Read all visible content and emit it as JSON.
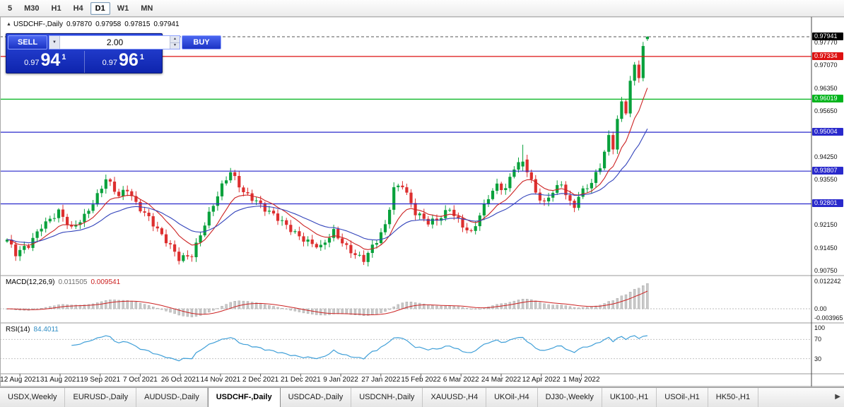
{
  "toolbar": {
    "timeframes": [
      "5",
      "M30",
      "H1",
      "H4",
      "D1",
      "W1",
      "MN"
    ],
    "active": "D1"
  },
  "chart": {
    "collapse_icon": "▲",
    "title": "USDCHF-,Daily",
    "open": "0.97870",
    "high": "0.97958",
    "low": "0.97815",
    "close": "0.97941"
  },
  "trade_panel": {
    "sell_label": "SELL",
    "buy_label": "BUY",
    "lot_size": "2.00",
    "dropdown_icon": "▼",
    "spin_up_icon": "▲",
    "spin_down_icon": "▼",
    "sell_price_prefix": "0.97",
    "sell_price_big": "94",
    "sell_price_sup": "1",
    "buy_price_prefix": "0.97",
    "buy_price_big": "96",
    "buy_price_sup": "1"
  },
  "price_axis": {
    "ticks": [
      "0.97770",
      "0.97070",
      "0.96350",
      "0.95650",
      "0.94250",
      "0.93550",
      "0.92150",
      "0.91450",
      "0.90750"
    ],
    "markers": [
      {
        "label": "0.97941",
        "color": "#000000"
      },
      {
        "label": "0.97334",
        "color": "#dd1111"
      },
      {
        "label": "0.96019",
        "color": "#00b41c"
      },
      {
        "label": "0.95004",
        "color": "#2929cc"
      },
      {
        "label": "0.93807",
        "color": "#2929cc"
      },
      {
        "label": "0.92801",
        "color": "#2929cc"
      }
    ]
  },
  "macd": {
    "name": "MACD(12,26,9)",
    "value_main": "0.011505",
    "value_signal": "0.009541",
    "axis": [
      "0.012242",
      "0.00",
      "-0.003965"
    ]
  },
  "rsi": {
    "name": "RSI(14)",
    "value": "84.4011",
    "axis": [
      "100",
      "70",
      "30"
    ]
  },
  "date_axis": [
    "12 Aug 2021",
    "31 Aug 2021",
    "19 Sep 2021",
    "7 Oct 2021",
    "26 Oct 2021",
    "14 Nov 2021",
    "2 Dec 2021",
    "21 Dec 2021",
    "9 Jan 2022",
    "27 Jan 2022",
    "15 Feb 2022",
    "6 Mar 2022",
    "24 Mar 2022",
    "12 Apr 2022",
    "1 May 2022"
  ],
  "tabs": {
    "items": [
      "USDX,Weekly",
      "EURUSD-,Daily",
      "AUDUSD-,Daily",
      "USDCHF-,Daily",
      "USDCAD-,Daily",
      "USDCNH-,Daily",
      "XAUUSD-,H4",
      "UKOil-,H4",
      "DJ30-,Weekly",
      "UK100-,H1",
      "USOil-,H1",
      "HK50-,H1"
    ],
    "active": "USDCHF-,Daily",
    "scroll_icon": "▶"
  },
  "chart_data": {
    "type": "candlestick",
    "symbol": "USDCHF-",
    "period": "Daily",
    "current_bar": {
      "open": 0.9787,
      "high": 0.97958,
      "low": 0.97815,
      "close": 0.97941
    },
    "bid": "0.97941",
    "ask": "0.97961",
    "up_color": "#09a13c",
    "down_color": "#dd2f2f",
    "ma_fast_color": "#cc2222",
    "ma_slow_color": "#3344bb",
    "macd_hist_color": "#c9c9c9",
    "macd_signal_color": "#cc2222",
    "rsi_color": "#3f9fd8",
    "rsi_levels": [
      70,
      30
    ],
    "levels": [
      {
        "price": 0.97334,
        "color": "#dd1111"
      },
      {
        "price": 0.96019,
        "color": "#00b41c"
      },
      {
        "price": 0.95004,
        "color": "#2929cc"
      },
      {
        "price": 0.93807,
        "color": "#2929cc"
      },
      {
        "price": 0.92801,
        "color": "#2929cc"
      }
    ],
    "current_price_marker": {
      "price": 0.97941,
      "color": "#000000"
    },
    "price_range_visible": [
      0.9075,
      0.9855
    ],
    "close_anchors": [
      [
        0,
        0.917
      ],
      [
        2,
        0.9122
      ],
      [
        5,
        0.915
      ],
      [
        8,
        0.9216
      ],
      [
        12,
        0.9256
      ],
      [
        15,
        0.9198
      ],
      [
        18,
        0.9242
      ],
      [
        21,
        0.931
      ],
      [
        23,
        0.936
      ],
      [
        26,
        0.93
      ],
      [
        28,
        0.9322
      ],
      [
        30,
        0.9281
      ],
      [
        33,
        0.9242
      ],
      [
        36,
        0.9182
      ],
      [
        40,
        0.9108
      ],
      [
        43,
        0.9126
      ],
      [
        46,
        0.9222
      ],
      [
        50,
        0.933
      ],
      [
        52,
        0.9376
      ],
      [
        55,
        0.932
      ],
      [
        58,
        0.9292
      ],
      [
        60,
        0.9262
      ],
      [
        63,
        0.9231
      ],
      [
        66,
        0.9203
      ],
      [
        70,
        0.9166
      ],
      [
        73,
        0.9142
      ],
      [
        76,
        0.9192
      ],
      [
        79,
        0.915
      ],
      [
        81,
        0.9128
      ],
      [
        83,
        0.9108
      ],
      [
        86,
        0.9162
      ],
      [
        88,
        0.921
      ],
      [
        90,
        0.933
      ],
      [
        92,
        0.9344
      ],
      [
        95,
        0.9252
      ],
      [
        98,
        0.9218
      ],
      [
        100,
        0.9228
      ],
      [
        103,
        0.927
      ],
      [
        106,
        0.9214
      ],
      [
        108,
        0.9186
      ],
      [
        110,
        0.924
      ],
      [
        112,
        0.93
      ],
      [
        114,
        0.934
      ],
      [
        116,
        0.933
      ],
      [
        118,
        0.9395
      ],
      [
        120,
        0.941
      ],
      [
        121,
        0.938
      ],
      [
        123,
        0.931
      ],
      [
        125,
        0.9282
      ],
      [
        127,
        0.9325
      ],
      [
        129,
        0.9345
      ],
      [
        131,
        0.928
      ],
      [
        132,
        0.9268
      ],
      [
        133,
        0.93
      ],
      [
        135,
        0.933
      ],
      [
        136,
        0.9345
      ],
      [
        138,
        0.94
      ],
      [
        139,
        0.9445
      ],
      [
        140,
        0.949
      ],
      [
        141,
        0.9458
      ],
      [
        142,
        0.954
      ],
      [
        143,
        0.9588
      ],
      [
        144,
        0.9562
      ],
      [
        145,
        0.965
      ],
      [
        146,
        0.97
      ],
      [
        147,
        0.9672
      ],
      [
        148,
        0.976
      ],
      [
        149,
        0.9787
      ]
    ],
    "spike_bar": {
      "index": 120,
      "open": 0.9395,
      "high": 0.9462,
      "low": 0.938,
      "close": 0.941
    }
  }
}
